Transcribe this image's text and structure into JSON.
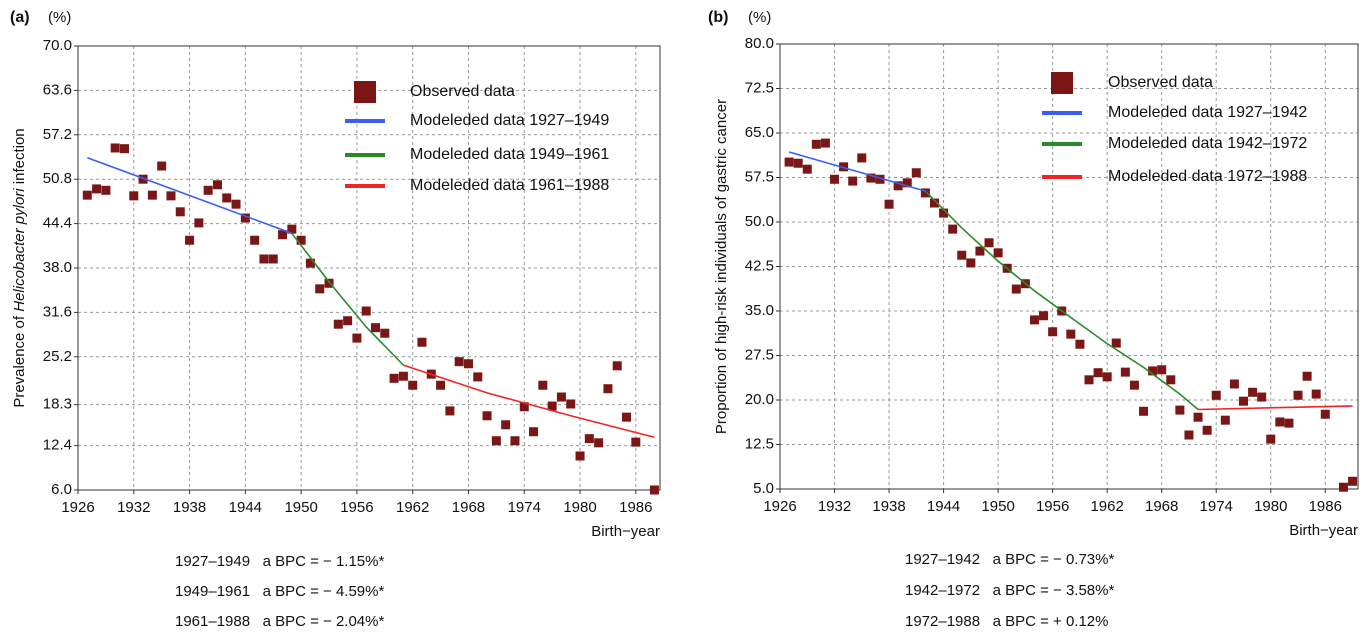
{
  "chart_data": [
    {
      "type": "scatter",
      "panel_label": "(a)",
      "unit_label": "(%)",
      "x_label": "Birth−year",
      "y_label": [
        "Prevalence of ",
        "Helicobacter pylori",
        " infection"
      ],
      "xlim": [
        1926,
        1988.6
      ],
      "xticks": [
        1926,
        1932,
        1938,
        1944,
        1950,
        1956,
        1962,
        1968,
        1974,
        1980,
        1986
      ],
      "ylim": [
        6,
        70
      ],
      "yticks": [
        {
          "value": 6,
          "label": "6.0"
        },
        12.4,
        18.3,
        25.2,
        31.6,
        {
          "value": 38,
          "label": "38.0"
        },
        44.4,
        50.8,
        57.2,
        63.6,
        {
          "value": 70,
          "label": "70.0"
        }
      ],
      "grid": true,
      "series": [
        {
          "name": "Observed data",
          "color": "#7a1616",
          "style": "marker",
          "x": [
            1927,
            1928,
            1929,
            1930,
            1931,
            1932,
            1933,
            1934,
            1935,
            1936,
            1937,
            1938,
            1939,
            1940,
            1941,
            1942,
            1943,
            1944,
            1945,
            1946,
            1947,
            1948,
            1949,
            1950,
            1951,
            1952,
            1953,
            1954,
            1955,
            1956,
            1957,
            1958,
            1959,
            1960,
            1961,
            1962,
            1963,
            1964,
            1965,
            1966,
            1967,
            1968,
            1969,
            1970,
            1971,
            1972,
            1973,
            1974,
            1975,
            1976,
            1977,
            1978,
            1979,
            1980,
            1981,
            1982,
            1983,
            1984,
            1985,
            1986,
            1988
          ],
          "values": [
            48.5,
            49.4,
            49.2,
            55.3,
            55.2,
            48.4,
            50.8,
            48.5,
            52.7,
            48.4,
            46.1,
            42.0,
            44.5,
            49.2,
            50.0,
            48.1,
            47.2,
            45.2,
            42.0,
            39.3,
            39.3,
            42.8,
            43.6,
            42.0,
            38.7,
            35.0,
            35.8,
            29.9,
            30.4,
            27.9,
            31.8,
            29.4,
            28.6,
            22.1,
            22.4,
            21.1,
            27.3,
            22.7,
            21.1,
            17.4,
            24.5,
            24.2,
            22.3,
            16.7,
            13.1,
            15.4,
            13.1,
            18.0,
            14.4,
            21.1,
            18.1,
            19.4,
            18.4,
            10.9,
            13.4,
            12.8,
            20.6,
            23.9,
            16.5,
            12.9,
            6.0
          ]
        },
        {
          "name": "Modeleded data 1927–1949",
          "color": "#3b5ef0",
          "style": "line",
          "x": [
            1927,
            1949
          ],
          "values": [
            53.9,
            43.0
          ]
        },
        {
          "name": "Modeleded data 1949–1961",
          "color": "#2a8a2a",
          "style": "line",
          "x": [
            1949,
            1953,
            1957,
            1961
          ],
          "values": [
            43.0,
            36.0,
            29.5,
            24.0
          ]
        },
        {
          "name": "Modeleded data 1961–1988",
          "color": "#f02424",
          "style": "line",
          "x": [
            1961,
            1970,
            1979,
            1988
          ],
          "values": [
            24.0,
            20.0,
            16.7,
            13.6
          ]
        }
      ],
      "annotations": [
        "1927–1949   a BPC = − 1.15%*",
        "1949–1961   a BPC = − 4.59%*",
        "1961–1988   a BPC = − 2.04%*"
      ]
    },
    {
      "type": "scatter",
      "panel_label": "(b)",
      "unit_label": "(%)",
      "x_label": "Birth−year",
      "y_label": [
        "Proportion of high-risk individuals of gastric cancer"
      ],
      "xlim": [
        1926,
        1989.6
      ],
      "xticks": [
        1926,
        1932,
        1938,
        1944,
        1950,
        1956,
        1962,
        1968,
        1974,
        1980,
        1986
      ],
      "ylim": [
        5,
        80
      ],
      "yticks": [
        {
          "value": 5,
          "label": "5.0"
        },
        12.5,
        {
          "value": 20,
          "label": "20.0"
        },
        27.5,
        {
          "value": 35,
          "label": "35.0"
        },
        42.5,
        {
          "value": 50,
          "label": "50.0"
        },
        57.5,
        {
          "value": 65,
          "label": "65.0"
        },
        72.5,
        {
          "value": 80,
          "label": "80.0"
        }
      ],
      "grid": true,
      "series": [
        {
          "name": "Observed data",
          "color": "#7a1616",
          "style": "marker",
          "x": [
            1927,
            1928,
            1929,
            1930,
            1931,
            1932,
            1933,
            1934,
            1935,
            1936,
            1937,
            1938,
            1939,
            1940,
            1941,
            1942,
            1943,
            1944,
            1945,
            1946,
            1947,
            1948,
            1949,
            1950,
            1951,
            1952,
            1953,
            1954,
            1955,
            1956,
            1957,
            1958,
            1959,
            1960,
            1961,
            1962,
            1963,
            1964,
            1965,
            1966,
            1967,
            1968,
            1969,
            1970,
            1971,
            1972,
            1973,
            1974,
            1975,
            1976,
            1977,
            1978,
            1979,
            1980,
            1981,
            1982,
            1983,
            1984,
            1985,
            1986,
            1988,
            1989
          ],
          "values": [
            60.1,
            59.9,
            58.9,
            63.1,
            63.3,
            57.2,
            59.3,
            56.9,
            60.8,
            57.4,
            57.2,
            53.0,
            56.1,
            56.6,
            58.3,
            54.9,
            53.2,
            51.5,
            48.8,
            44.4,
            43.1,
            45.1,
            46.5,
            44.8,
            42.2,
            38.7,
            39.6,
            33.5,
            34.2,
            31.5,
            35.0,
            31.1,
            29.4,
            23.4,
            24.6,
            23.9,
            29.6,
            24.7,
            22.5,
            18.1,
            24.9,
            25.1,
            23.4,
            18.3,
            14.1,
            17.1,
            14.9,
            20.8,
            16.6,
            22.7,
            19.8,
            21.3,
            20.5,
            13.4,
            16.3,
            16.1,
            20.8,
            24.0,
            21.0,
            17.6,
            5.3,
            6.3
          ]
        },
        {
          "name": "Modeleded data 1927–1942",
          "color": "#3b5ef0",
          "style": "line",
          "x": [
            1927,
            1942
          ],
          "values": [
            61.8,
            55.2
          ]
        },
        {
          "name": "Modeleded data 1942–1972",
          "color": "#2a8a2a",
          "style": "line",
          "x": [
            1942,
            1946,
            1950,
            1954,
            1958,
            1962,
            1966,
            1970,
            1972
          ],
          "values": [
            55.2,
            49.0,
            43.4,
            38.4,
            33.9,
            29.5,
            25.5,
            21.0,
            18.4
          ]
        },
        {
          "name": "Modeleded data 1972–1988",
          "color": "#f02424",
          "style": "line",
          "x": [
            1972,
            1989
          ],
          "values": [
            18.4,
            19.0
          ]
        }
      ],
      "annotations": [
        "1927–1942   a BPC = − 0.73%*",
        "1942–1972   a BPC = − 3.58%*",
        "1972–1988   a BPC = + 0.12%"
      ]
    }
  ]
}
